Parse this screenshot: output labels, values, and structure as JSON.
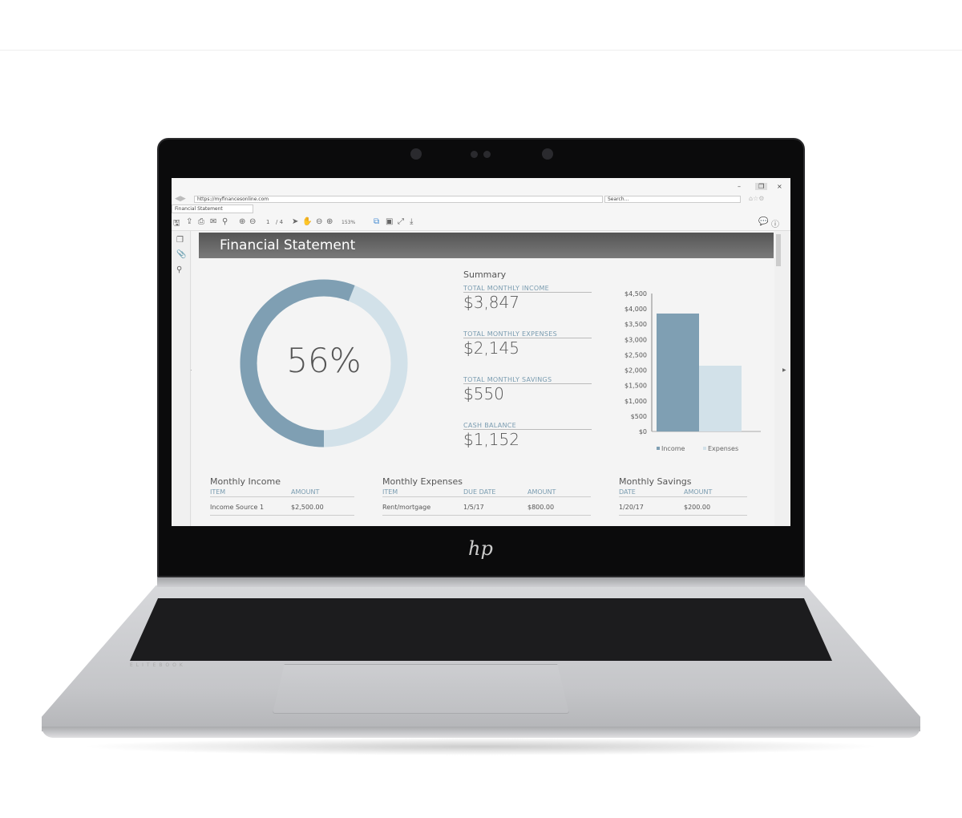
{
  "browser": {
    "url": "https://myfinancesonline.com",
    "search_placeholder": "Search...",
    "tab_title": "Financial Statement",
    "window_controls": [
      "–",
      "❐",
      "×"
    ]
  },
  "toolbar": {
    "page_current": "1",
    "page_total": "/ 4",
    "zoom": "153%"
  },
  "document": {
    "title": "Financial Statement",
    "donut": {
      "percent_label": "56%",
      "value": 0.56,
      "color_fill": "#7f9fb3",
      "color_rest": "#d2e1e9"
    },
    "summary": {
      "heading": "Summary",
      "items": [
        {
          "label": "TOTAL MONTHLY INCOME",
          "value": "$3,847"
        },
        {
          "label": "TOTAL MONTHLY EXPENSES",
          "value": "$2,145"
        },
        {
          "label": "TOTAL MONTHLY SAVINGS",
          "value": "$550"
        },
        {
          "label": "CASH BALANCE",
          "value": "$1,152"
        }
      ]
    },
    "income": {
      "title": "Monthly Income",
      "headers": [
        "ITEM",
        "AMOUNT"
      ],
      "rows": [
        [
          "Income Source 1",
          "$2,500.00"
        ]
      ]
    },
    "expenses": {
      "title": "Monthly Expenses",
      "headers": [
        "ITEM",
        "DUE DATE",
        "AMOUNT"
      ],
      "rows": [
        [
          "Rent/mortgage",
          "1/5/17",
          "$800.00"
        ]
      ]
    },
    "savings": {
      "title": "Monthly Savings",
      "headers": [
        "DATE",
        "AMOUNT"
      ],
      "rows": [
        [
          "1/20/17",
          "$200.00"
        ]
      ]
    }
  },
  "chart_data": {
    "type": "bar",
    "categories": [
      "Income",
      "Expenses"
    ],
    "values": [
      3847,
      2145
    ],
    "ylim": [
      0,
      4500
    ],
    "yticks": [
      "$0",
      "$500",
      "$1,000",
      "$1,500",
      "$2,000",
      "$2,500",
      "$3,000",
      "$3,500",
      "$4,000",
      "$4,500"
    ],
    "colors": [
      "#7f9fb3",
      "#d2e1e9"
    ],
    "legend": [
      "Income",
      "Expenses"
    ],
    "legend_position": "bottom"
  },
  "laptop": {
    "brand": "hp",
    "model": "ELITEBOOK"
  }
}
